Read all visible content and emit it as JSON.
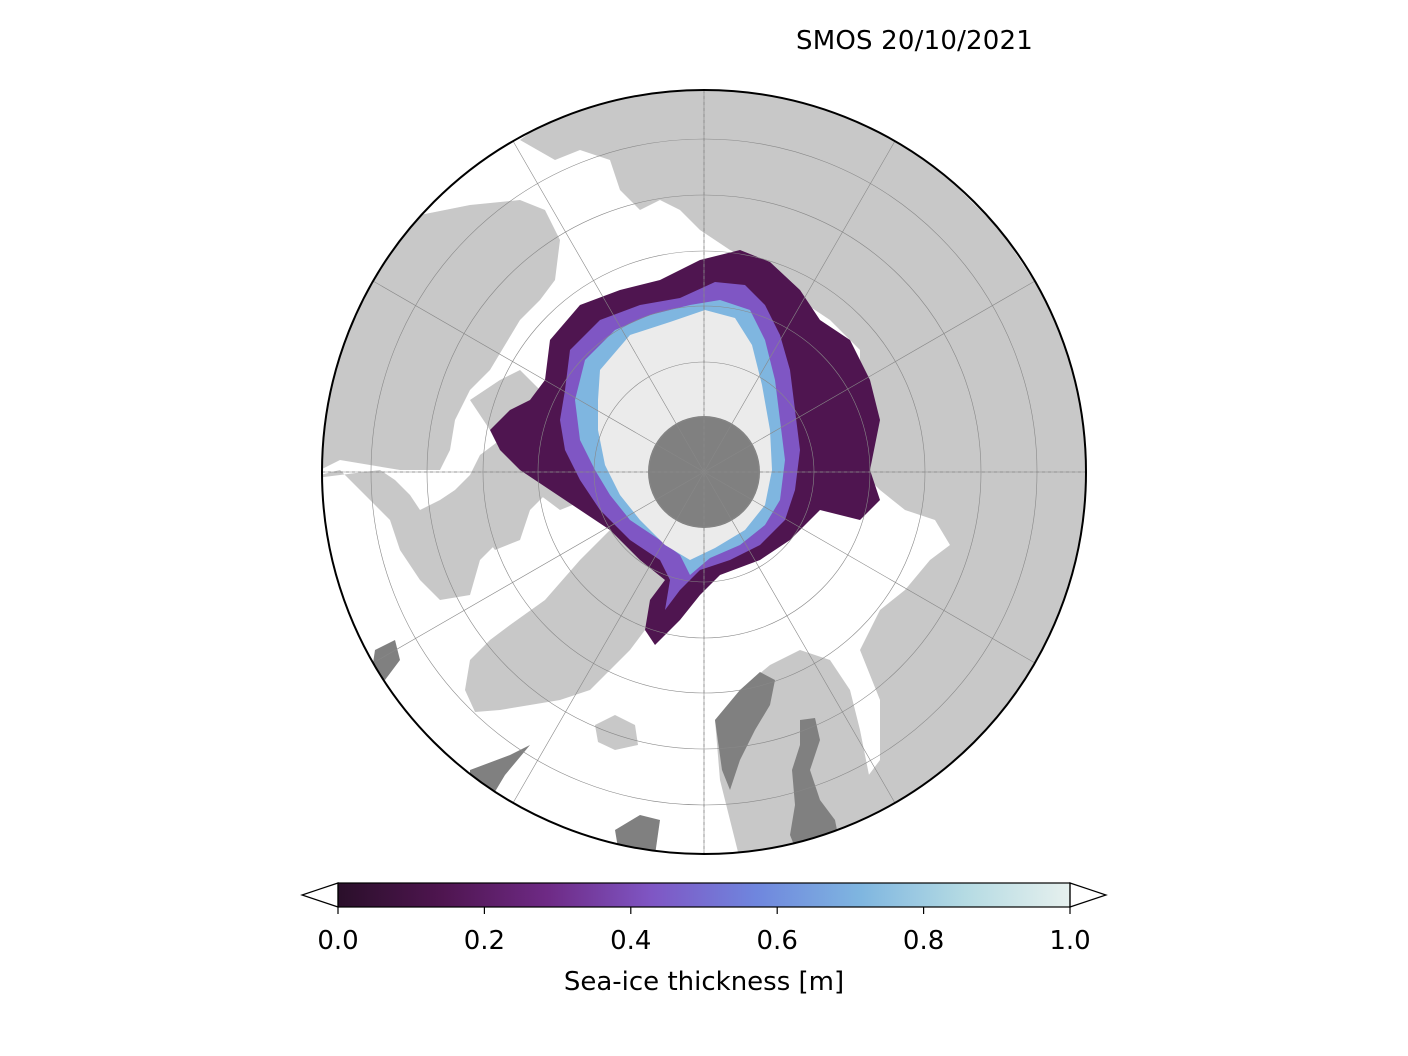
{
  "title": "SMOS 20/10/2021",
  "colorbar": {
    "label": "Sea-ice thickness [m]",
    "ticks": [
      "0.0",
      "0.2",
      "0.4",
      "0.6",
      "0.8",
      "1.0"
    ],
    "min": 0.0,
    "max": 1.0,
    "extend": "both",
    "colormap_stops": [
      "#2a0f2a",
      "#4f1550",
      "#6e2a85",
      "#7f56c4",
      "#6f86de",
      "#7fb6e0",
      "#b5dbe3",
      "#e6f0ee"
    ]
  },
  "map": {
    "projection": "north-polar-stereographic",
    "colors": {
      "land": "#c8c8c8",
      "ocean": "#ffffff",
      "lake_or_missing": "#808080",
      "pole_hole": "#808080",
      "thick_ice": "#ebebeb",
      "graticule": "#888888",
      "boundary": "#000000"
    }
  }
}
